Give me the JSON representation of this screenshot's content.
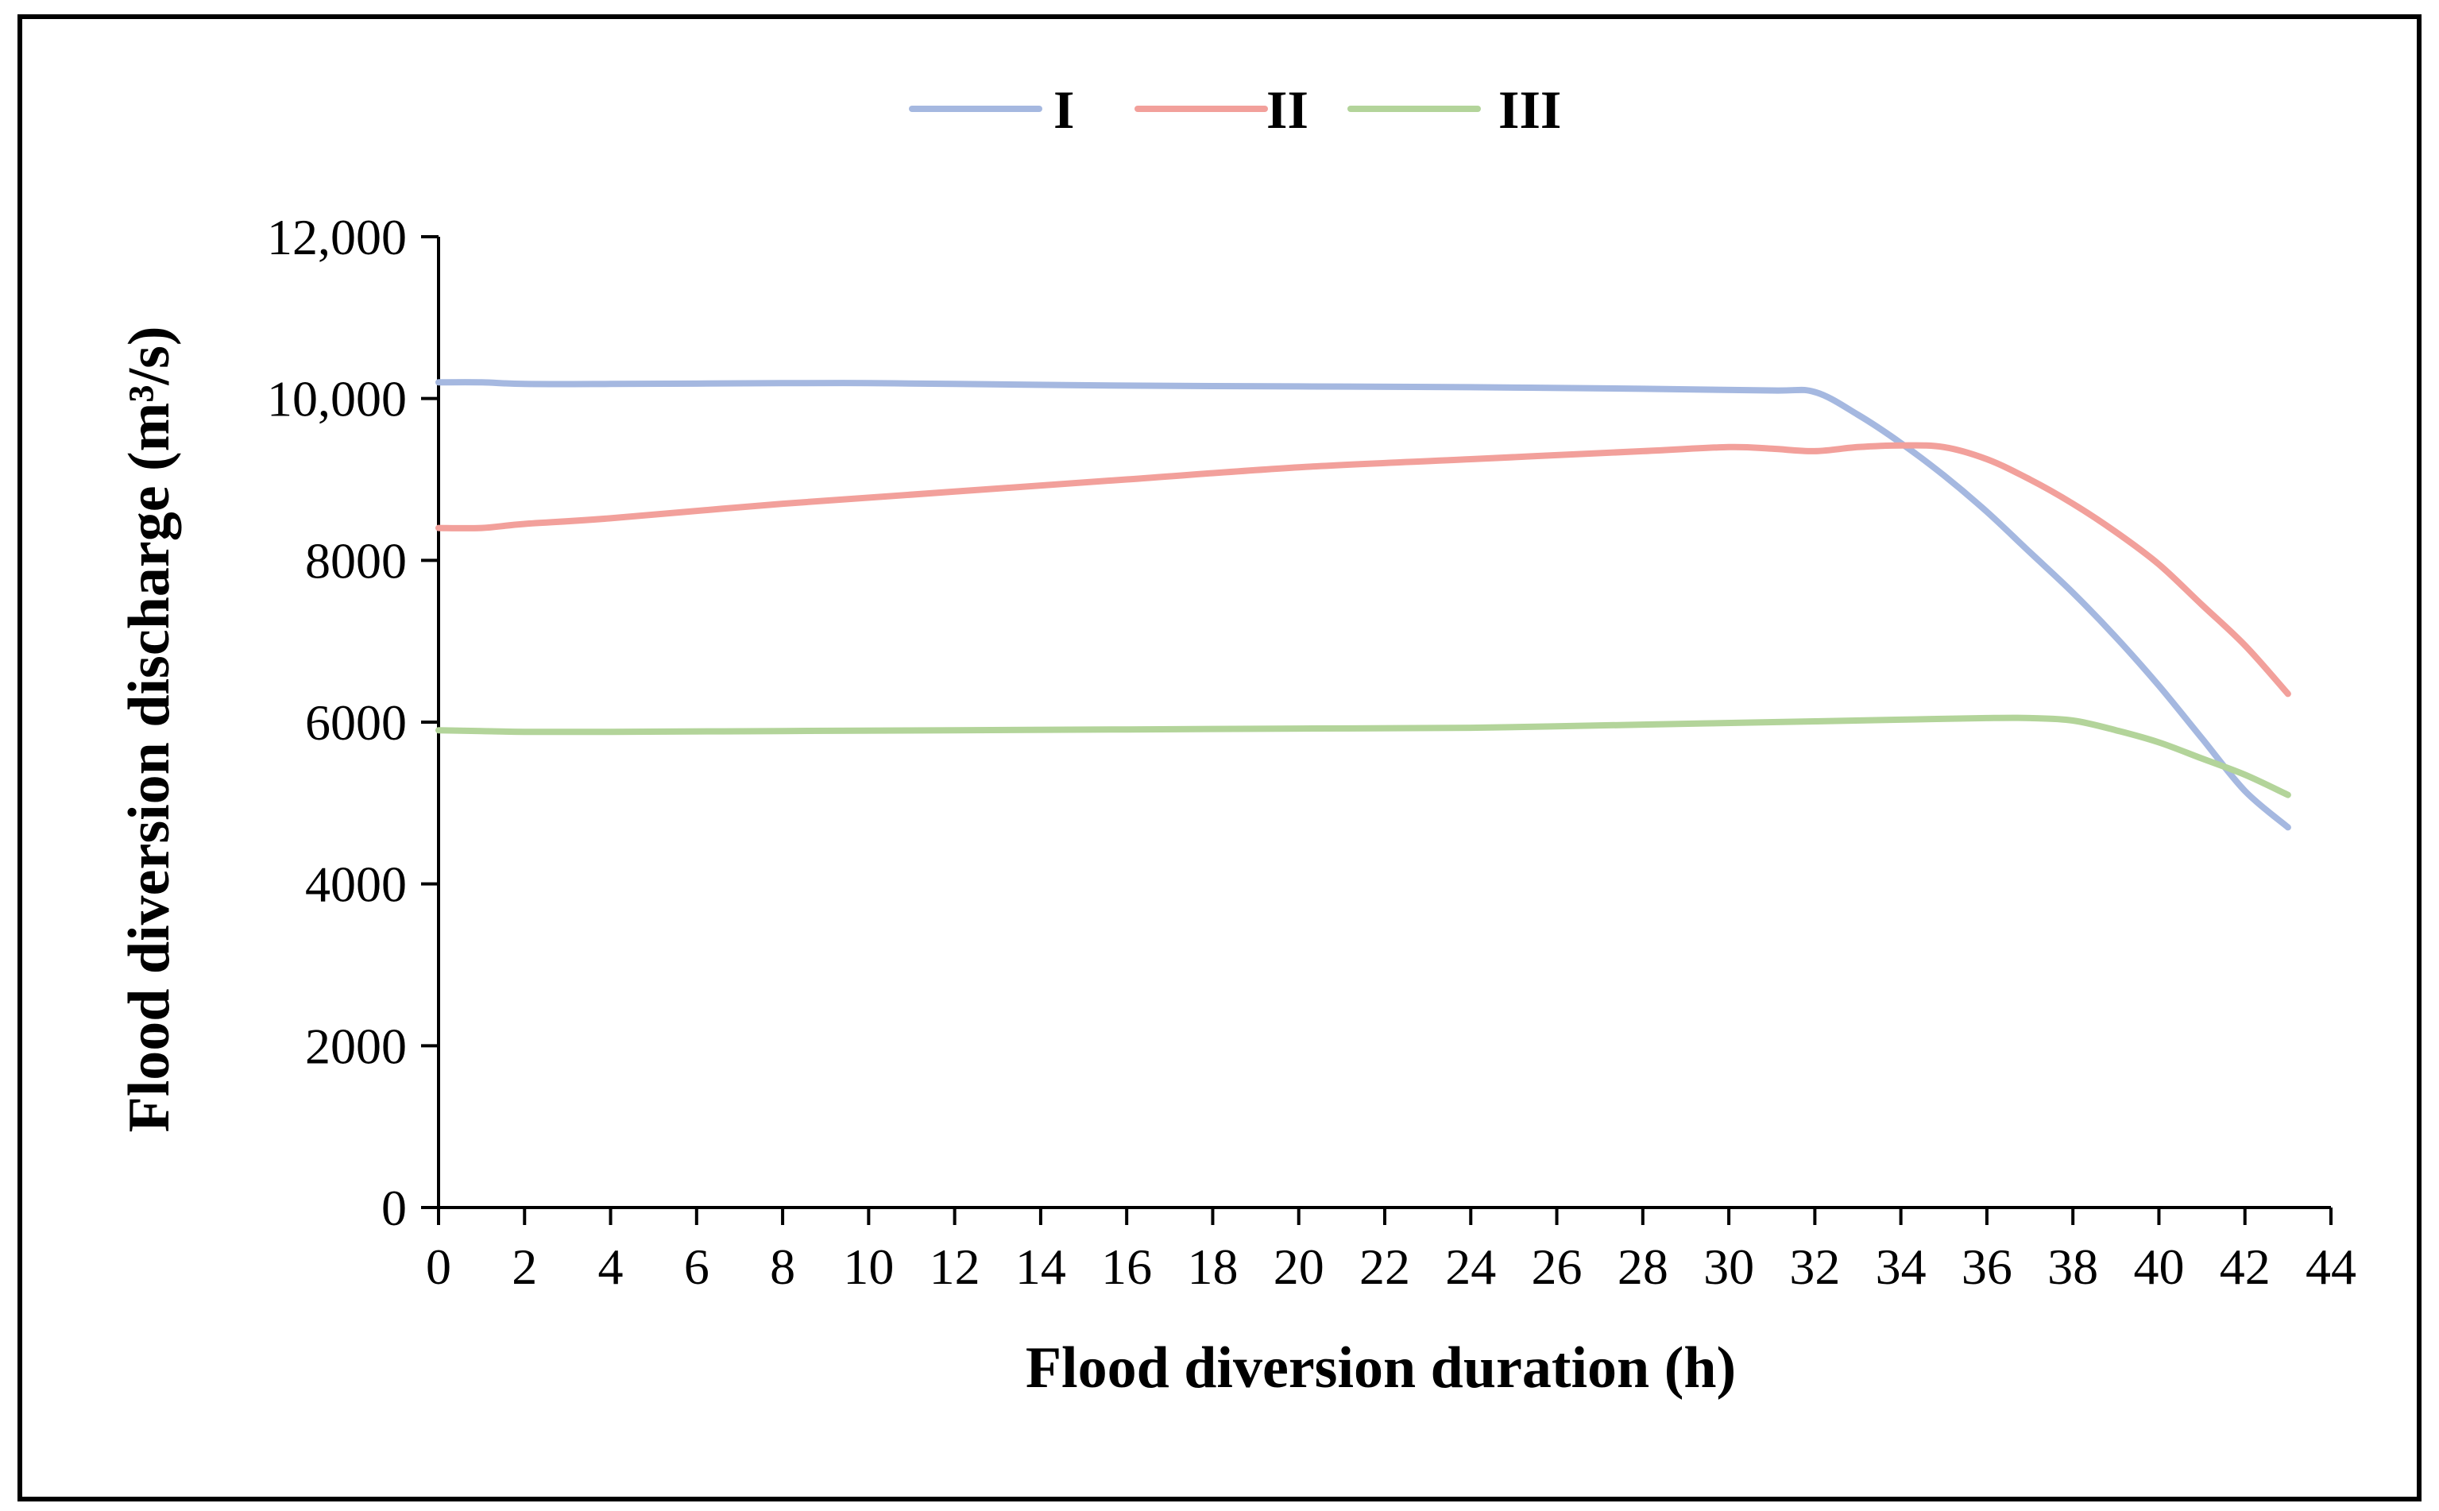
{
  "chart_data": {
    "type": "line",
    "title": "",
    "xlabel": "Flood diversion duration (h)",
    "ylabel": "Flood diversion discharge (m³/s)",
    "xlim": [
      0,
      44
    ],
    "ylim": [
      0,
      12000
    ],
    "xticks": [
      0,
      2,
      4,
      6,
      8,
      10,
      12,
      14,
      16,
      18,
      20,
      22,
      24,
      26,
      28,
      30,
      32,
      34,
      36,
      38,
      40,
      42,
      44
    ],
    "xtick_labels": [
      "0",
      "2",
      "4",
      "6",
      "8",
      "10",
      "12",
      "14",
      "16",
      "18",
      "20",
      "22",
      "24",
      "26",
      "28",
      "30",
      "32",
      "34",
      "36",
      "38",
      "40",
      "42",
      "44"
    ],
    "yticks": [
      0,
      2000,
      4000,
      6000,
      8000,
      10000,
      12000
    ],
    "ytick_labels": [
      "0",
      "2000",
      "4000",
      "6000",
      "8000",
      "10,000",
      "12,000"
    ],
    "grid": false,
    "legend_position": "top-center",
    "series": [
      {
        "name": "I",
        "color": "#a5b8e0",
        "x": [
          0,
          1,
          2,
          4,
          8,
          10,
          12,
          16,
          20,
          24,
          28,
          31,
          32,
          33,
          34,
          35,
          36,
          37,
          38,
          39,
          40,
          41,
          42,
          43
        ],
        "y": [
          10200,
          10200,
          10180,
          10180,
          10190,
          10190,
          10180,
          10160,
          10150,
          10140,
          10120,
          10100,
          10080,
          9800,
          9450,
          9050,
          8600,
          8100,
          7600,
          7050,
          6450,
          5800,
          5150,
          4700
        ]
      },
      {
        "name": "II",
        "color": "#f2a09b",
        "x": [
          0,
          1,
          2,
          4,
          8,
          12,
          16,
          20,
          24,
          28,
          30,
          31,
          32,
          33,
          34,
          35,
          36,
          37,
          38,
          39,
          40,
          41,
          42,
          43
        ],
        "y": [
          8400,
          8400,
          8450,
          8520,
          8700,
          8850,
          9000,
          9150,
          9250,
          9350,
          9400,
          9380,
          9350,
          9400,
          9420,
          9400,
          9250,
          9000,
          8700,
          8350,
          7950,
          7450,
          6950,
          6350
        ]
      },
      {
        "name": "III",
        "color": "#b3d49a",
        "x": [
          0,
          1,
          2,
          4,
          8,
          12,
          16,
          20,
          24,
          28,
          32,
          34,
          36,
          37,
          38,
          39,
          40,
          41,
          42,
          43
        ],
        "y": [
          5900,
          5890,
          5880,
          5880,
          5890,
          5900,
          5910,
          5920,
          5930,
          5970,
          6010,
          6030,
          6050,
          6050,
          6020,
          5900,
          5750,
          5550,
          5350,
          5100
        ]
      }
    ]
  }
}
